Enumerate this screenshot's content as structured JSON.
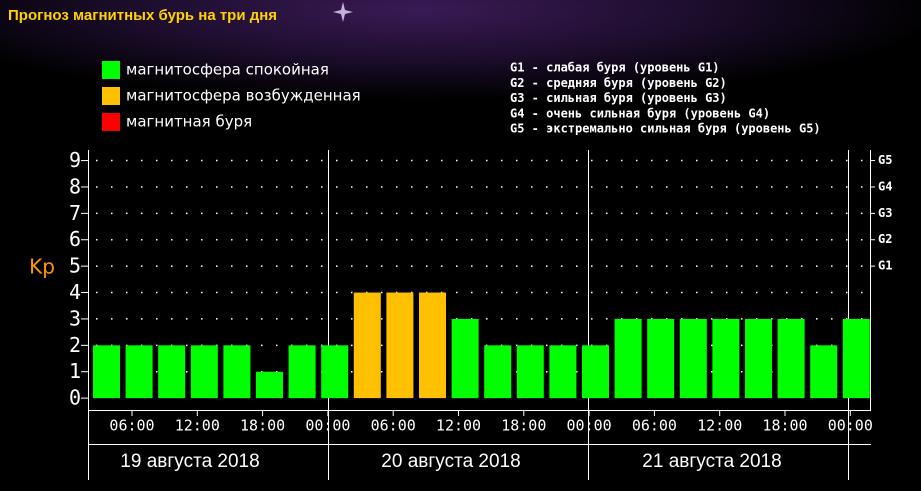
{
  "chart_data": {
    "type": "bar",
    "title": "Прогноз магнитных бурь на три дня",
    "legend": [
      {
        "label": "магнитосфера спокойная",
        "color": "#00ff00"
      },
      {
        "label": "магнитосфера возбужденная",
        "color": "#ffc000"
      },
      {
        "label": "магнитная буря",
        "color": "#ff0000"
      }
    ],
    "g_legend": [
      "G1 - слабая буря (уровень G1)",
      "G2 - средняя буря (уровень G2)",
      "G3 - сильная буря (уровень G3)",
      "G4 - очень сильная буря (уровень G4)",
      "G5 - экстремально сильная буря (уровень G5)"
    ],
    "ylabel": "Kp",
    "values": [
      2,
      2,
      2,
      2,
      2,
      1,
      2,
      2,
      4,
      4,
      4,
      3,
      2,
      2,
      2,
      2,
      3,
      3,
      3,
      3,
      3,
      3,
      2,
      3
    ],
    "colors": [
      "#00ff00",
      "#00ff00",
      "#00ff00",
      "#00ff00",
      "#00ff00",
      "#00ff00",
      "#00ff00",
      "#00ff00",
      "#ffc000",
      "#ffc000",
      "#ffc000",
      "#00ff00",
      "#00ff00",
      "#00ff00",
      "#00ff00",
      "#00ff00",
      "#00ff00",
      "#00ff00",
      "#00ff00",
      "#00ff00",
      "#00ff00",
      "#00ff00",
      "#00ff00",
      "#00ff00"
    ],
    "xtick_labels": [
      "06:00",
      "12:00",
      "18:00",
      "00:00",
      "06:00",
      "12:00",
      "18:00",
      "00:00",
      "06:00",
      "12:00",
      "18:00",
      "00:00"
    ],
    "days": [
      "19 августа 2018",
      "20 августа 2018",
      "21 августа 2018"
    ],
    "ylim": [
      -0.45,
      9.4
    ],
    "yticks": [
      0,
      1,
      2,
      3,
      4,
      5,
      6,
      7,
      8,
      9
    ],
    "y2lim": [
      -0.45,
      9.4
    ],
    "y2ticks": [
      {
        "value": 5,
        "label": "G1"
      },
      {
        "value": 6,
        "label": "G2"
      },
      {
        "value": 7,
        "label": "G3"
      },
      {
        "value": 8,
        "label": "G4"
      },
      {
        "value": 9,
        "label": "G5"
      }
    ],
    "grid": true
  }
}
